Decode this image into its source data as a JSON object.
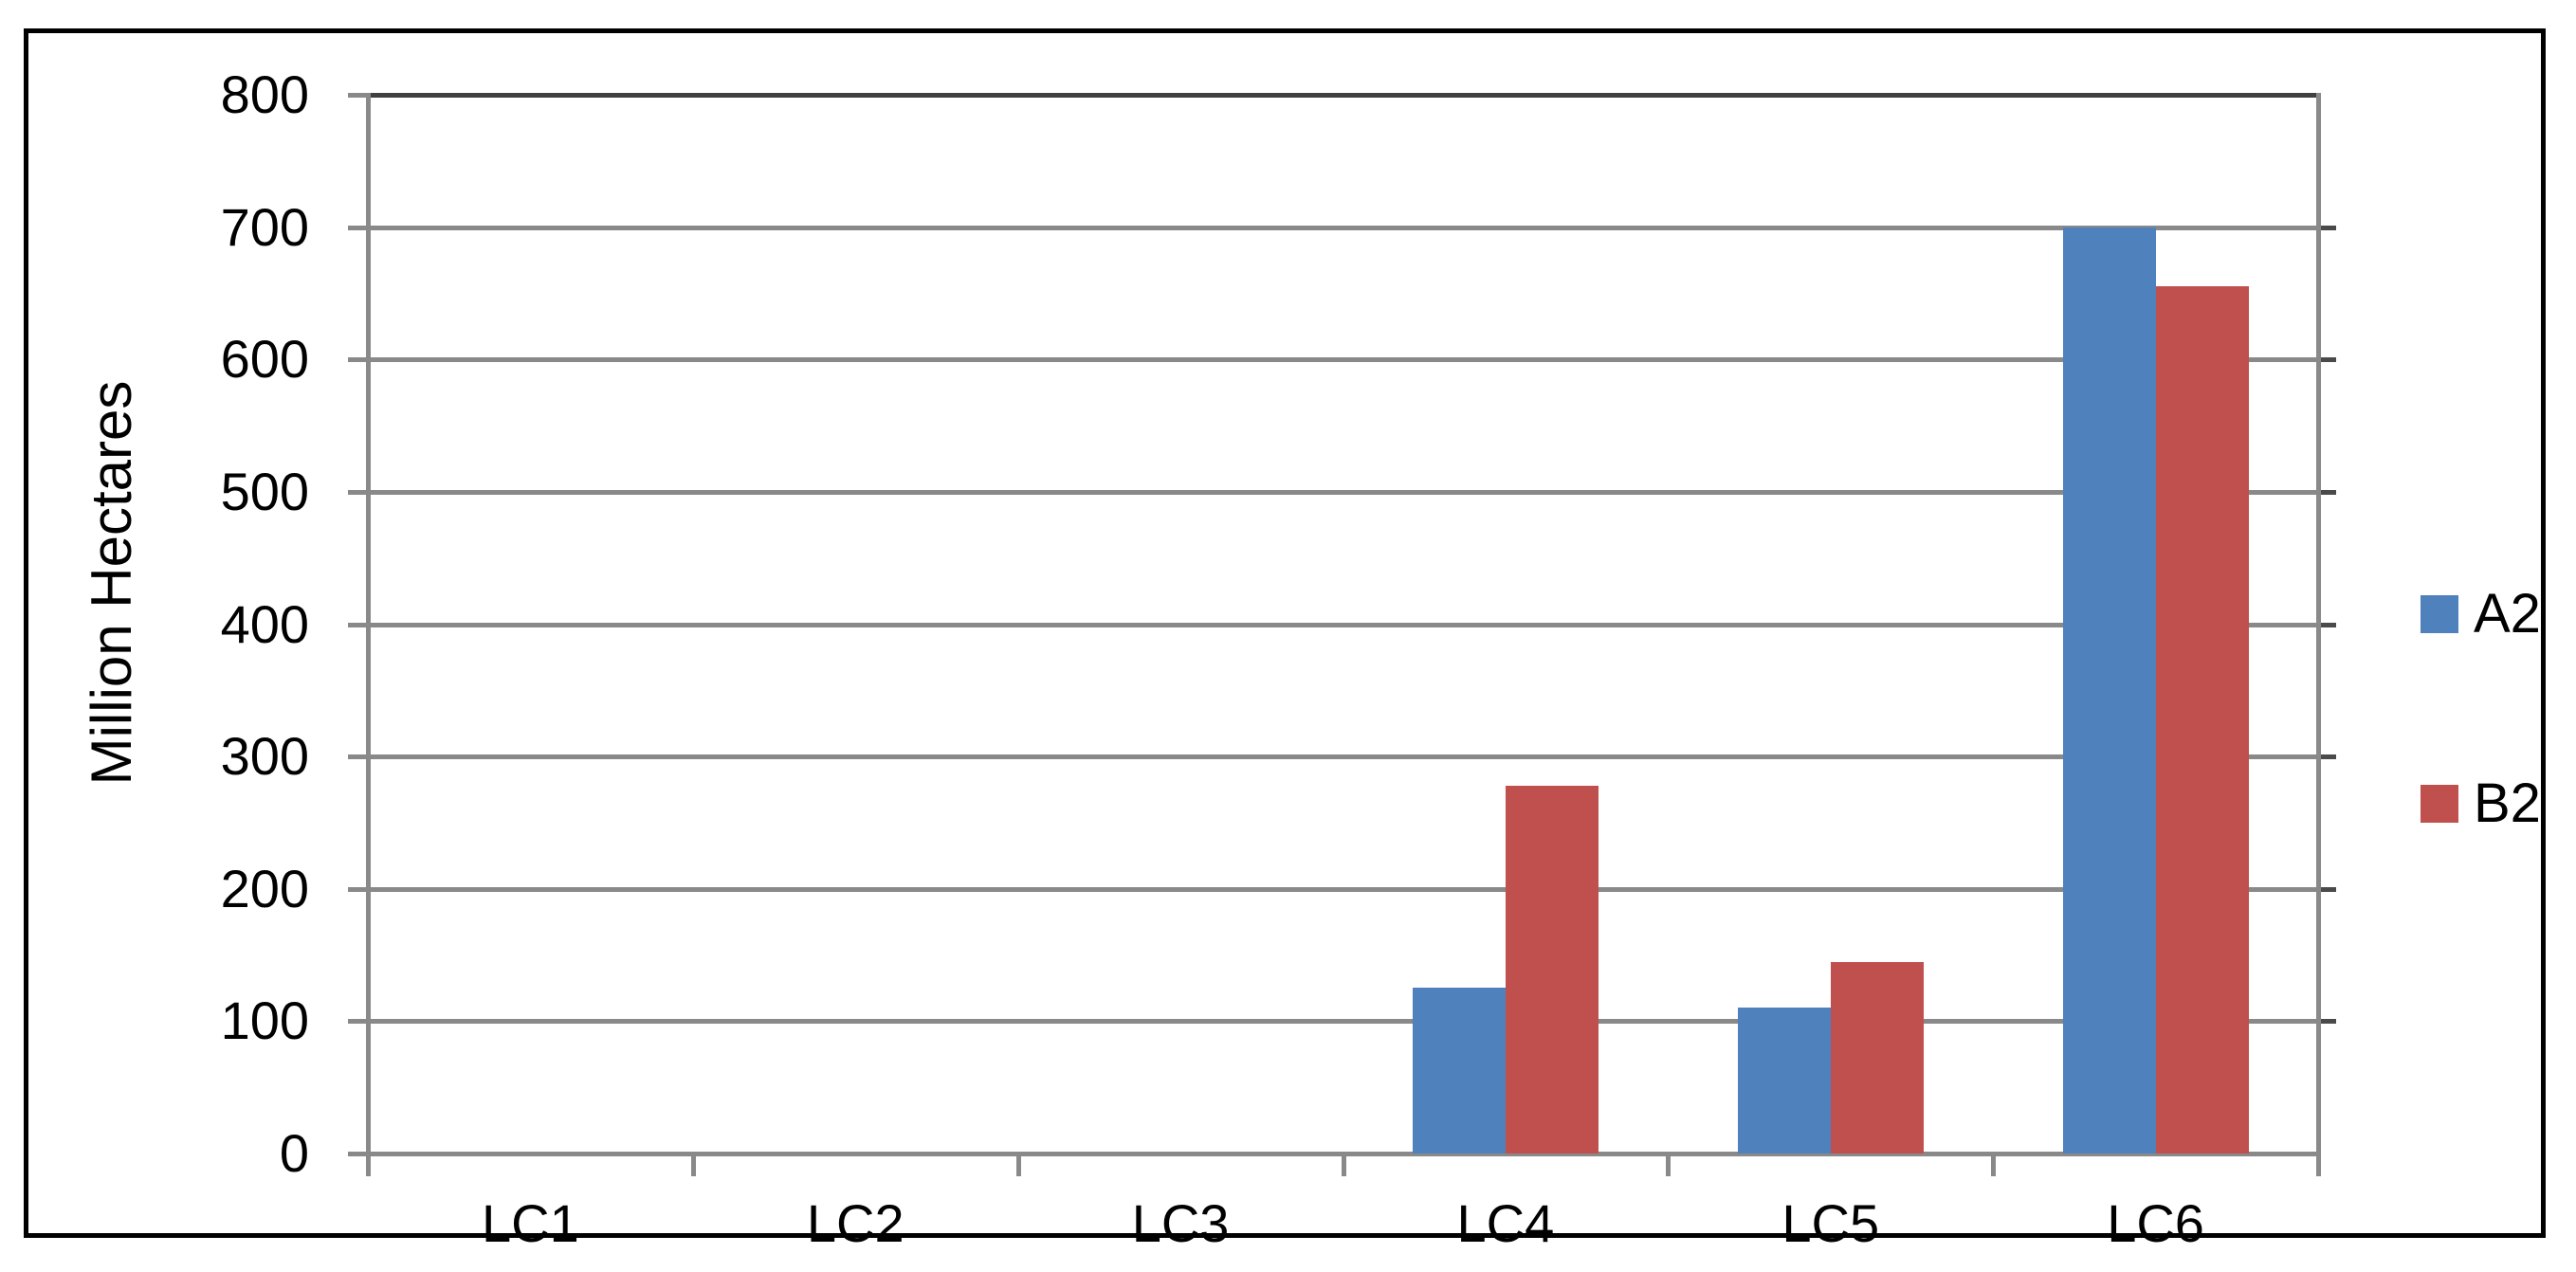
{
  "chart_data": {
    "type": "bar",
    "title": "",
    "ylabel": "Million Hectares",
    "xlabel": "",
    "categories": [
      "LC1",
      "LC2",
      "LC3",
      "LC4",
      "LC5",
      "LC6"
    ],
    "series": [
      {
        "name": "A2",
        "color": "#4F81BD",
        "values": [
          0,
          0,
          0,
          125,
          110,
          700
        ]
      },
      {
        "name": "B2",
        "color": "#C0504D",
        "values": [
          0,
          0,
          0,
          278,
          145,
          655
        ]
      }
    ],
    "ylim": [
      0,
      800
    ],
    "ytick_step": 100,
    "yticks": [
      0,
      100,
      200,
      300,
      400,
      500,
      600,
      700,
      800
    ],
    "grid": true,
    "legend_position": "right",
    "colors": {
      "gridline": "#898989",
      "top_gridline": "#404040",
      "axis": "#898989",
      "right_tick": "#4a4a4a",
      "frame_border": "#000000",
      "text": "#000000"
    }
  }
}
